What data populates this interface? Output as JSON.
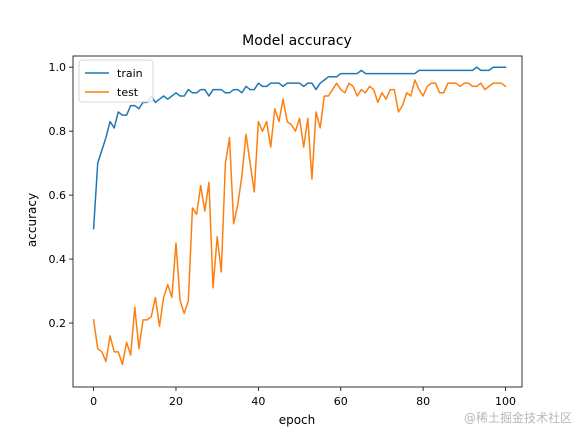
{
  "chart_data": {
    "type": "line",
    "title": "Model accuracy",
    "xlabel": "epoch",
    "ylabel": "accuracy",
    "xlim": [
      -5,
      104
    ],
    "ylim": [
      0.0,
      1.035
    ],
    "xticks": [
      0,
      20,
      40,
      60,
      80,
      100
    ],
    "yticks": [
      0.2,
      0.4,
      0.6,
      0.8,
      1.0
    ],
    "xtick_labels": [
      "0",
      "20",
      "40",
      "60",
      "80",
      "100"
    ],
    "ytick_labels": [
      "0.2",
      "0.4",
      "0.6",
      "0.8",
      "1.0"
    ],
    "grid": false,
    "legend_position": "upper left",
    "x": [
      0,
      1,
      2,
      3,
      4,
      5,
      6,
      7,
      8,
      9,
      10,
      11,
      12,
      13,
      14,
      15,
      16,
      17,
      18,
      19,
      20,
      21,
      22,
      23,
      24,
      25,
      26,
      27,
      28,
      29,
      30,
      31,
      32,
      33,
      34,
      35,
      36,
      37,
      38,
      39,
      40,
      41,
      42,
      43,
      44,
      45,
      46,
      47,
      48,
      49,
      50,
      51,
      52,
      53,
      54,
      55,
      56,
      57,
      58,
      59,
      60,
      61,
      62,
      63,
      64,
      65,
      66,
      67,
      68,
      69,
      70,
      71,
      72,
      73,
      74,
      75,
      76,
      77,
      78,
      79,
      80,
      81,
      82,
      83,
      84,
      85,
      86,
      87,
      88,
      89,
      90,
      91,
      92,
      93,
      94,
      95,
      96,
      97,
      98,
      99,
      100
    ],
    "series": [
      {
        "name": "train",
        "color": "#1f77b4",
        "values": [
          0.495,
          0.7,
          0.74,
          0.78,
          0.83,
          0.81,
          0.86,
          0.85,
          0.85,
          0.88,
          0.88,
          0.87,
          0.89,
          0.89,
          0.91,
          0.89,
          0.9,
          0.91,
          0.9,
          0.91,
          0.92,
          0.91,
          0.91,
          0.93,
          0.92,
          0.92,
          0.93,
          0.93,
          0.91,
          0.93,
          0.93,
          0.93,
          0.92,
          0.92,
          0.93,
          0.93,
          0.92,
          0.94,
          0.93,
          0.93,
          0.95,
          0.94,
          0.94,
          0.95,
          0.95,
          0.95,
          0.94,
          0.95,
          0.95,
          0.95,
          0.95,
          0.94,
          0.95,
          0.95,
          0.93,
          0.95,
          0.96,
          0.97,
          0.97,
          0.97,
          0.98,
          0.98,
          0.98,
          0.98,
          0.98,
          0.99,
          0.98,
          0.98,
          0.98,
          0.98,
          0.98,
          0.98,
          0.98,
          0.98,
          0.98,
          0.98,
          0.98,
          0.98,
          0.98,
          0.99,
          0.99,
          0.99,
          0.99,
          0.99,
          0.99,
          0.99,
          0.99,
          0.99,
          0.99,
          0.99,
          0.99,
          0.99,
          0.99,
          1.0,
          0.99,
          0.99,
          0.99,
          1.0,
          1.0,
          1.0,
          1.0
        ]
      },
      {
        "name": "test",
        "color": "#ff7f0e",
        "values": [
          0.21,
          0.12,
          0.11,
          0.08,
          0.16,
          0.11,
          0.11,
          0.07,
          0.14,
          0.1,
          0.25,
          0.12,
          0.21,
          0.21,
          0.22,
          0.28,
          0.19,
          0.28,
          0.32,
          0.28,
          0.45,
          0.27,
          0.23,
          0.27,
          0.56,
          0.54,
          0.63,
          0.55,
          0.64,
          0.31,
          0.47,
          0.36,
          0.7,
          0.78,
          0.51,
          0.57,
          0.66,
          0.79,
          0.7,
          0.61,
          0.83,
          0.8,
          0.83,
          0.75,
          0.87,
          0.83,
          0.9,
          0.83,
          0.82,
          0.8,
          0.84,
          0.75,
          0.84,
          0.65,
          0.86,
          0.81,
          0.91,
          0.91,
          0.93,
          0.95,
          0.93,
          0.92,
          0.95,
          0.94,
          0.91,
          0.93,
          0.92,
          0.94,
          0.93,
          0.89,
          0.92,
          0.9,
          0.93,
          0.93,
          0.86,
          0.88,
          0.92,
          0.91,
          0.96,
          0.93,
          0.91,
          0.94,
          0.95,
          0.95,
          0.92,
          0.92,
          0.95,
          0.95,
          0.95,
          0.94,
          0.95,
          0.95,
          0.94,
          0.94,
          0.95,
          0.93,
          0.94,
          0.95,
          0.95,
          0.95,
          0.94
        ]
      }
    ]
  },
  "watermark": "@稀土掘金技术社区"
}
